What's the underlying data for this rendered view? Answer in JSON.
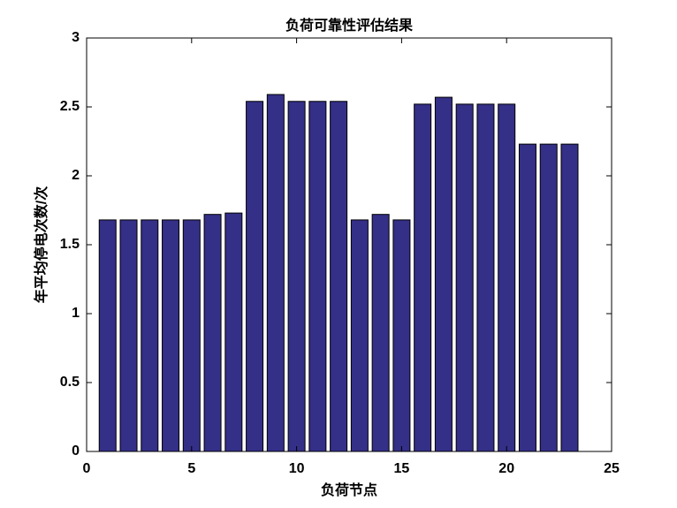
{
  "chart_data": {
    "type": "bar",
    "title": "负荷可靠性评估结果",
    "xlabel": "负荷节点",
    "ylabel": "年平均停电次数/次",
    "x": [
      1,
      2,
      3,
      4,
      5,
      6,
      7,
      8,
      9,
      10,
      11,
      12,
      13,
      14,
      15,
      16,
      17,
      18,
      19,
      20,
      21,
      22,
      23
    ],
    "values": [
      1.68,
      1.68,
      1.68,
      1.68,
      1.68,
      1.72,
      1.73,
      2.54,
      2.59,
      2.54,
      2.54,
      2.54,
      1.68,
      1.72,
      1.68,
      2.52,
      2.57,
      2.52,
      2.52,
      2.52,
      2.23,
      2.23,
      2.23
    ],
    "color": "#342f87",
    "xlim": [
      0,
      25
    ],
    "xticks": [
      0,
      5,
      10,
      15,
      20,
      25
    ],
    "ylim": [
      0,
      3
    ],
    "yticks": [
      0,
      0.5,
      1,
      1.5,
      2,
      2.5,
      3
    ],
    "grid": false
  }
}
